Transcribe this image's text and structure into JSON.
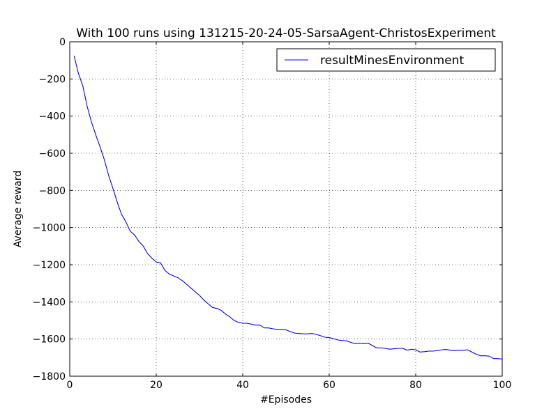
{
  "chart_data": {
    "type": "line",
    "title": "With 100 runs using 131215-20-24-05-SarsaAgent-ChristosExperiment",
    "xlabel": "#Episodes",
    "ylabel": "Average reward",
    "xlim": [
      0,
      100
    ],
    "ylim": [
      -1800,
      0
    ],
    "xticks": [
      0,
      20,
      40,
      60,
      80,
      100
    ],
    "yticks": [
      0,
      -200,
      -400,
      -600,
      -800,
      -1000,
      -1200,
      -1400,
      -1600,
      -1800
    ],
    "grid": true,
    "legend_position": "top-right",
    "series": [
      {
        "name": "resultMinesEnvironment",
        "color": "#0000ff",
        "x": [
          1,
          2,
          3,
          4,
          5,
          6,
          7,
          8,
          9,
          10,
          11,
          12,
          13,
          14,
          15,
          16,
          17,
          18,
          19,
          20,
          21,
          22,
          23,
          24,
          25,
          26,
          27,
          28,
          29,
          30,
          31,
          32,
          33,
          34,
          35,
          36,
          37,
          38,
          39,
          40,
          41,
          42,
          43,
          44,
          45,
          46,
          47,
          48,
          49,
          50,
          51,
          52,
          53,
          54,
          55,
          56,
          57,
          58,
          59,
          60,
          61,
          62,
          63,
          64,
          65,
          66,
          67,
          68,
          69,
          70,
          71,
          72,
          73,
          74,
          75,
          76,
          77,
          78,
          79,
          80,
          81,
          82,
          83,
          84,
          85,
          86,
          87,
          88,
          89,
          90,
          91,
          92,
          93,
          94,
          95,
          96,
          97,
          98,
          99,
          100
        ],
        "y": [
          -75,
          -170,
          -235,
          -345,
          -430,
          -500,
          -565,
          -635,
          -720,
          -790,
          -865,
          -930,
          -970,
          -1020,
          -1040,
          -1075,
          -1100,
          -1140,
          -1165,
          -1185,
          -1190,
          -1230,
          -1250,
          -1260,
          -1270,
          -1285,
          -1305,
          -1325,
          -1345,
          -1365,
          -1390,
          -1410,
          -1430,
          -1435,
          -1445,
          -1465,
          -1480,
          -1500,
          -1510,
          -1515,
          -1515,
          -1520,
          -1525,
          -1525,
          -1540,
          -1540,
          -1545,
          -1548,
          -1548,
          -1550,
          -1560,
          -1568,
          -1570,
          -1572,
          -1572,
          -1570,
          -1575,
          -1582,
          -1590,
          -1592,
          -1598,
          -1605,
          -1608,
          -1610,
          -1618,
          -1625,
          -1622,
          -1625,
          -1622,
          -1635,
          -1648,
          -1648,
          -1650,
          -1655,
          -1652,
          -1650,
          -1650,
          -1660,
          -1655,
          -1658,
          -1670,
          -1668,
          -1665,
          -1665,
          -1662,
          -1658,
          -1656,
          -1660,
          -1662,
          -1660,
          -1660,
          -1658,
          -1670,
          -1682,
          -1690,
          -1690,
          -1692,
          -1705,
          -1705,
          -1708
        ]
      }
    ]
  }
}
